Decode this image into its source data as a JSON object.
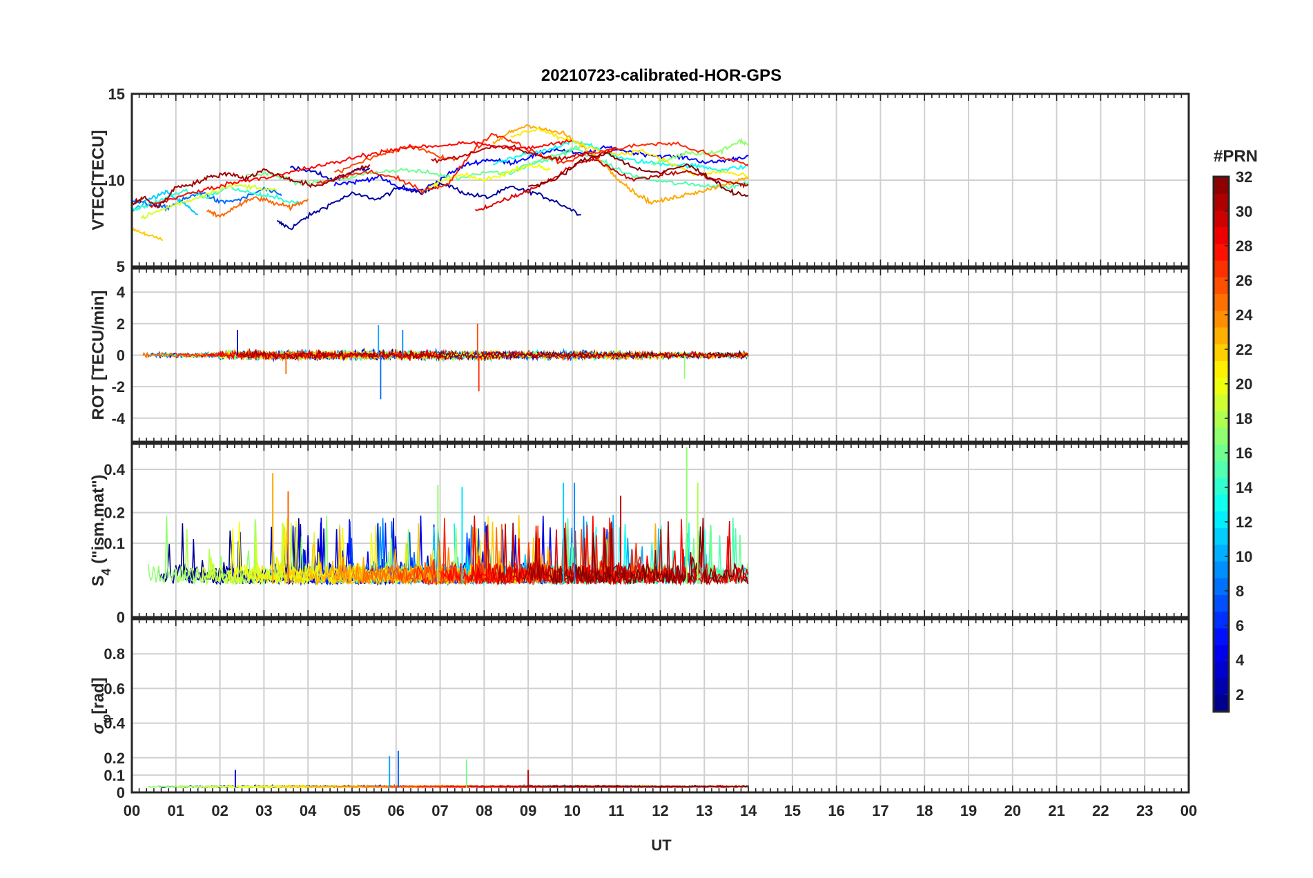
{
  "title": "20210723-calibrated-HOR-GPS",
  "chart_data": [
    {
      "type": "line",
      "panel": "vtec",
      "ylabel": "VTEC[TECU]",
      "ylim": [
        5,
        15
      ],
      "yticks": [
        5,
        10,
        15
      ],
      "series": [
        {
          "prn": 2,
          "x": [
            3.3,
            3.6,
            4.0,
            4.5,
            5.0,
            5.6,
            6.1,
            6.6,
            7.1,
            7.6,
            8.1,
            8.6,
            9.1,
            9.6,
            10.2
          ],
          "y": [
            7.6,
            7.2,
            7.9,
            8.6,
            9.2,
            8.9,
            9.6,
            9.3,
            9.8,
            9.2,
            9.0,
            9.6,
            9.3,
            8.8,
            8.0
          ]
        },
        {
          "prn": 5,
          "x": [
            4.6,
            5.1,
            5.6,
            6.1,
            6.6,
            7.1,
            7.6,
            8.1,
            8.6,
            9.1,
            9.6,
            10.2,
            10.8,
            11.4,
            12.0,
            12.6,
            13.1,
            13.6,
            14.0
          ],
          "y": [
            9.8,
            9.9,
            10.2,
            9.5,
            9.4,
            10.2,
            10.9,
            11.2,
            11.0,
            11.4,
            11.8,
            11.5,
            11.9,
            11.6,
            11.4,
            11.3,
            11.0,
            11.2,
            11.4
          ]
        },
        {
          "prn": 3,
          "x": [
            3.6,
            4.1,
            4.6,
            5.1,
            5.4
          ],
          "y": [
            10.7,
            10.5,
            10.0,
            10.6,
            10.7
          ]
        },
        {
          "prn": 8,
          "x": [
            0.0,
            0.4,
            0.8,
            1.2,
            1.6,
            2.0,
            2.5,
            3.0,
            3.4
          ],
          "y": [
            8.8,
            8.6,
            8.4,
            8.9,
            9.3,
            8.7,
            8.9,
            9.5,
            9.1
          ]
        },
        {
          "prn": 11,
          "x": [
            0.0,
            0.4,
            0.8,
            1.2,
            1.5
          ],
          "y": [
            8.2,
            8.9,
            9.3,
            8.6,
            8.0
          ]
        },
        {
          "prn": 13,
          "x": [
            8.2,
            8.8,
            9.4,
            10.0,
            10.6,
            11.2,
            11.8,
            12.4,
            12.9,
            13.4,
            14.0
          ],
          "y": [
            10.9,
            11.4,
            11.7,
            12.3,
            11.8,
            11.2,
            11.0,
            10.9,
            10.8,
            10.6,
            10.8
          ]
        },
        {
          "prn": 15,
          "x": [
            8.4,
            9.0,
            9.5,
            10.1,
            10.7,
            11.2,
            11.8,
            12.4,
            13.0,
            13.6,
            14.0
          ],
          "y": [
            10.3,
            10.9,
            11.2,
            11.8,
            11.1,
            10.4,
            10.0,
            9.8,
            9.7,
            9.6,
            9.9
          ]
        },
        {
          "prn": 16,
          "x": [
            2.6,
            3.2,
            3.8,
            4.4,
            5.0,
            5.6,
            6.2,
            6.8,
            7.4,
            8.0,
            8.6,
            9.2,
            9.8,
            10.3
          ],
          "y": [
            10.3,
            10.4,
            9.8,
            9.9,
            10.2,
            10.5,
            10.6,
            10.4,
            10.1,
            10.5,
            10.4,
            11.1,
            11.6,
            12.1
          ]
        },
        {
          "prn": 17,
          "x": [
            11.8,
            12.2,
            12.6,
            13.0,
            13.4,
            13.8,
            14.0
          ],
          "y": [
            10.9,
            11.2,
            11.6,
            11.5,
            11.7,
            12.3,
            12.0
          ]
        },
        {
          "prn": 14,
          "x": [
            0.0,
            0.4,
            0.8,
            1.2,
            1.7,
            2.2,
            2.8,
            3.2,
            3.8
          ],
          "y": [
            8.2,
            8.6,
            9.0,
            9.4,
            9.0,
            9.6,
            9.2,
            9.0,
            8.7
          ]
        },
        {
          "prn": 19,
          "x": [
            0.2,
            0.6,
            1.0,
            1.4,
            1.8,
            2.3,
            2.8,
            3.3
          ],
          "y": [
            7.8,
            8.2,
            8.6,
            8.9,
            9.3,
            9.7,
            9.6,
            9.4
          ]
        },
        {
          "prn": 20,
          "x": [
            6.6,
            7.0,
            7.5,
            8.0,
            8.5,
            9.0,
            9.5
          ],
          "y": [
            9.3,
            9.9,
            10.3,
            10.0,
            10.4,
            10.9,
            10.6
          ]
        },
        {
          "prn": 22,
          "x": [
            0.0,
            0.3,
            0.7
          ],
          "y": [
            7.2,
            6.9,
            6.5
          ]
        },
        {
          "prn": 23,
          "x": [
            8.2,
            8.6,
            9.0,
            9.4,
            9.8,
            10.2,
            10.6,
            11.0,
            11.4,
            11.8,
            12.2,
            12.6,
            13.0,
            13.5,
            14.0
          ],
          "y": [
            12.1,
            12.8,
            13.2,
            12.9,
            12.7,
            12.0,
            11.2,
            10.2,
            9.3,
            8.7,
            8.9,
            9.2,
            9.4,
            9.8,
            10.1
          ]
        },
        {
          "prn": 21,
          "x": [
            8.6,
            9.2,
            9.8,
            10.4,
            11.0,
            11.6,
            12.2,
            12.8,
            13.4,
            14.0
          ],
          "y": [
            12.5,
            13.0,
            12.4,
            11.9,
            11.5,
            11.7,
            11.0,
            10.3,
            10.5,
            10.2
          ]
        },
        {
          "prn": 25,
          "x": [
            1.7,
            2.0,
            2.4,
            2.8,
            3.2,
            3.6,
            4.0
          ],
          "y": [
            8.2,
            7.9,
            8.5,
            9.0,
            8.7,
            8.4,
            8.9
          ]
        },
        {
          "prn": 26,
          "x": [
            4.6,
            5.2,
            5.8,
            6.4,
            7.0,
            7.4
          ],
          "y": [
            10.4,
            11.1,
            11.6,
            12.0,
            11.3,
            11.2
          ]
        },
        {
          "prn": 27,
          "x": [
            4.2,
            4.8,
            5.4,
            6.0,
            6.6,
            7.2,
            7.7,
            8.2,
            8.7,
            9.2,
            9.8,
            10.4,
            11.0,
            11.7,
            12.4,
            13.2,
            14.0
          ],
          "y": [
            9.8,
            10.2,
            10.5,
            10.1,
            9.4,
            9.8,
            11.6,
            12.7,
            12.2,
            11.5,
            11.0,
            11.6,
            11.8,
            12.1,
            12.1,
            11.4,
            10.9
          ]
        },
        {
          "prn": 28,
          "x": [
            0.4,
            1.0,
            1.6,
            2.2,
            2.8,
            3.4,
            4.0,
            4.6,
            5.2,
            5.8,
            6.4,
            7.0,
            7.6,
            8.2,
            8.8,
            9.4,
            10.0
          ],
          "y": [
            8.5,
            9.0,
            9.4,
            9.8,
            10.1,
            10.3,
            10.7,
            11.0,
            11.4,
            11.7,
            11.9,
            12.0,
            12.2,
            12.0,
            11.8,
            12.0,
            12.3
          ]
        },
        {
          "prn": 29,
          "x": [
            7.8,
            8.2,
            8.6,
            9.0,
            9.5,
            10.0,
            10.5,
            11.0
          ],
          "y": [
            8.2,
            8.6,
            9.0,
            9.4,
            10.0,
            10.8,
            11.3,
            11.9
          ]
        },
        {
          "prn": 30,
          "x": [
            6.8,
            7.4,
            8.0,
            8.6,
            9.2,
            9.8,
            10.3,
            10.8,
            11.4,
            12.0,
            12.6,
            13.2,
            13.7,
            14.0
          ],
          "y": [
            11.1,
            11.3,
            11.8,
            12.0,
            11.4,
            11.2,
            11.6,
            10.8,
            10.0,
            10.3,
            10.5,
            10.1,
            9.8,
            9.7
          ]
        },
        {
          "prn": 31,
          "x": [
            0.0,
            0.3,
            0.6,
            1.0,
            1.4,
            1.8,
            2.2,
            2.6,
            3.0,
            3.4,
            3.8,
            4.2,
            4.8,
            5.4
          ],
          "y": [
            8.6,
            9.0,
            8.4,
            9.6,
            9.8,
            10.2,
            10.4,
            10.1,
            10.6,
            10.2,
            9.9,
            9.6,
            10.3,
            10.9
          ]
        },
        {
          "prn": 32,
          "x": [
            9.0,
            9.6,
            10.2,
            10.8,
            11.4,
            12.0,
            12.6,
            13.1,
            13.6,
            14.0
          ],
          "y": [
            9.6,
            10.0,
            11.1,
            11.6,
            10.7,
            10.4,
            10.9,
            10.2,
            9.3,
            9.1
          ]
        }
      ]
    },
    {
      "type": "line",
      "panel": "rot",
      "ylabel": "ROT [TECU/min]",
      "ylim": [
        -5.5,
        5.5
      ],
      "yticks": [
        -4,
        -2,
        0,
        2,
        4
      ]
    },
    {
      "type": "line",
      "panel": "s4",
      "ylabel_main": "S",
      "ylabel_sub": "4",
      "ylabel_rest": " (\"ism.mat\")",
      "ylim": [
        0,
        0.55
      ],
      "yscale": "sqrt",
      "yticks": [
        0,
        0.1,
        0.2,
        0.4
      ],
      "peaks": [
        {
          "x": 3.2,
          "y": 0.38,
          "prn": 23
        },
        {
          "x": 3.55,
          "y": 0.29,
          "prn": 25
        },
        {
          "x": 6.95,
          "y": 0.32,
          "prn": 17
        },
        {
          "x": 7.5,
          "y": 0.31,
          "prn": 12
        },
        {
          "x": 9.8,
          "y": 0.33,
          "prn": 11
        },
        {
          "x": 10.05,
          "y": 0.33,
          "prn": 9
        },
        {
          "x": 11.1,
          "y": 0.27,
          "prn": 30
        },
        {
          "x": 12.6,
          "y": 0.53,
          "prn": 17
        },
        {
          "x": 12.85,
          "y": 0.33,
          "prn": 18
        }
      ]
    },
    {
      "type": "line",
      "panel": "sigma_phi",
      "ylabel_main": "σ",
      "ylabel_sub": "φ",
      "ylabel_rest": "[rad]",
      "ylim": [
        0,
        1.0
      ],
      "yticks": [
        0,
        0.1,
        0.2,
        0.4,
        0.6,
        0.8
      ],
      "peaks": [
        {
          "x": 5.85,
          "y": 0.21,
          "prn": 10
        },
        {
          "x": 6.05,
          "y": 0.24,
          "prn": 8
        },
        {
          "x": 7.6,
          "y": 0.19,
          "prn": 16
        },
        {
          "x": 9.0,
          "y": 0.13,
          "prn": 30
        },
        {
          "x": 2.35,
          "y": 0.13,
          "prn": 4
        }
      ]
    }
  ],
  "xaxis": {
    "label": "UT",
    "xlim": [
      0,
      24
    ],
    "ticks": [
      "00",
      "01",
      "02",
      "03",
      "04",
      "05",
      "06",
      "07",
      "08",
      "09",
      "10",
      "11",
      "12",
      "13",
      "14",
      "15",
      "16",
      "17",
      "18",
      "19",
      "20",
      "21",
      "22",
      "23",
      "00"
    ]
  },
  "colorbar": {
    "label": "#PRN",
    "range": [
      1,
      32
    ],
    "ticks": [
      "2",
      "4",
      "6",
      "8",
      "10",
      "12",
      "14",
      "16",
      "18",
      "20",
      "22",
      "24",
      "26",
      "28",
      "30",
      "32"
    ],
    "colormap": "jet"
  },
  "colors": {
    "grid": "#d0d0d0",
    "axis": "#262626"
  }
}
